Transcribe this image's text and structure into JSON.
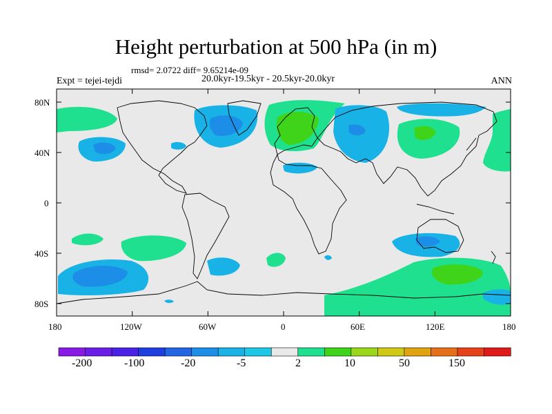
{
  "title": "Height perturbation at 500 hPa (in m)",
  "stats_line": "rmsd= 2.0722 diff= 9.65214e-09",
  "period_line": "20.0kyr-19.5kyr - 20.5kyr-20.0kyr",
  "experiment_label": "Expt = tejei-tejdi",
  "season_label": "ANN",
  "lat_ticks": [
    "80N",
    "40N",
    "0",
    "40S",
    "80S"
  ],
  "lon_ticks": [
    "180",
    "120W",
    "60W",
    "0",
    "60E",
    "120E",
    "180"
  ],
  "colorbar": {
    "labels": [
      "-200",
      "-100",
      "-20",
      "-5",
      "2",
      "10",
      "50",
      "150"
    ],
    "colors": [
      "#8a1ae6",
      "#6a1ee8",
      "#4a22e6",
      "#1e3ee0",
      "#2266e6",
      "#1d8ee8",
      "#19b2e6",
      "#1cc8e6",
      "#e9e9e9",
      "#1fe08f",
      "#3fd41a",
      "#9ad61a",
      "#cfc814",
      "#e0a410",
      "#e6701a",
      "#e6421a",
      "#e01a1a"
    ]
  },
  "colors": {
    "background": "#e9e9e9",
    "positive": "#1fe08f",
    "positive_strong": "#3fd41a",
    "negative": "#19b2e6",
    "negative_strong": "#1d8ee8"
  }
}
